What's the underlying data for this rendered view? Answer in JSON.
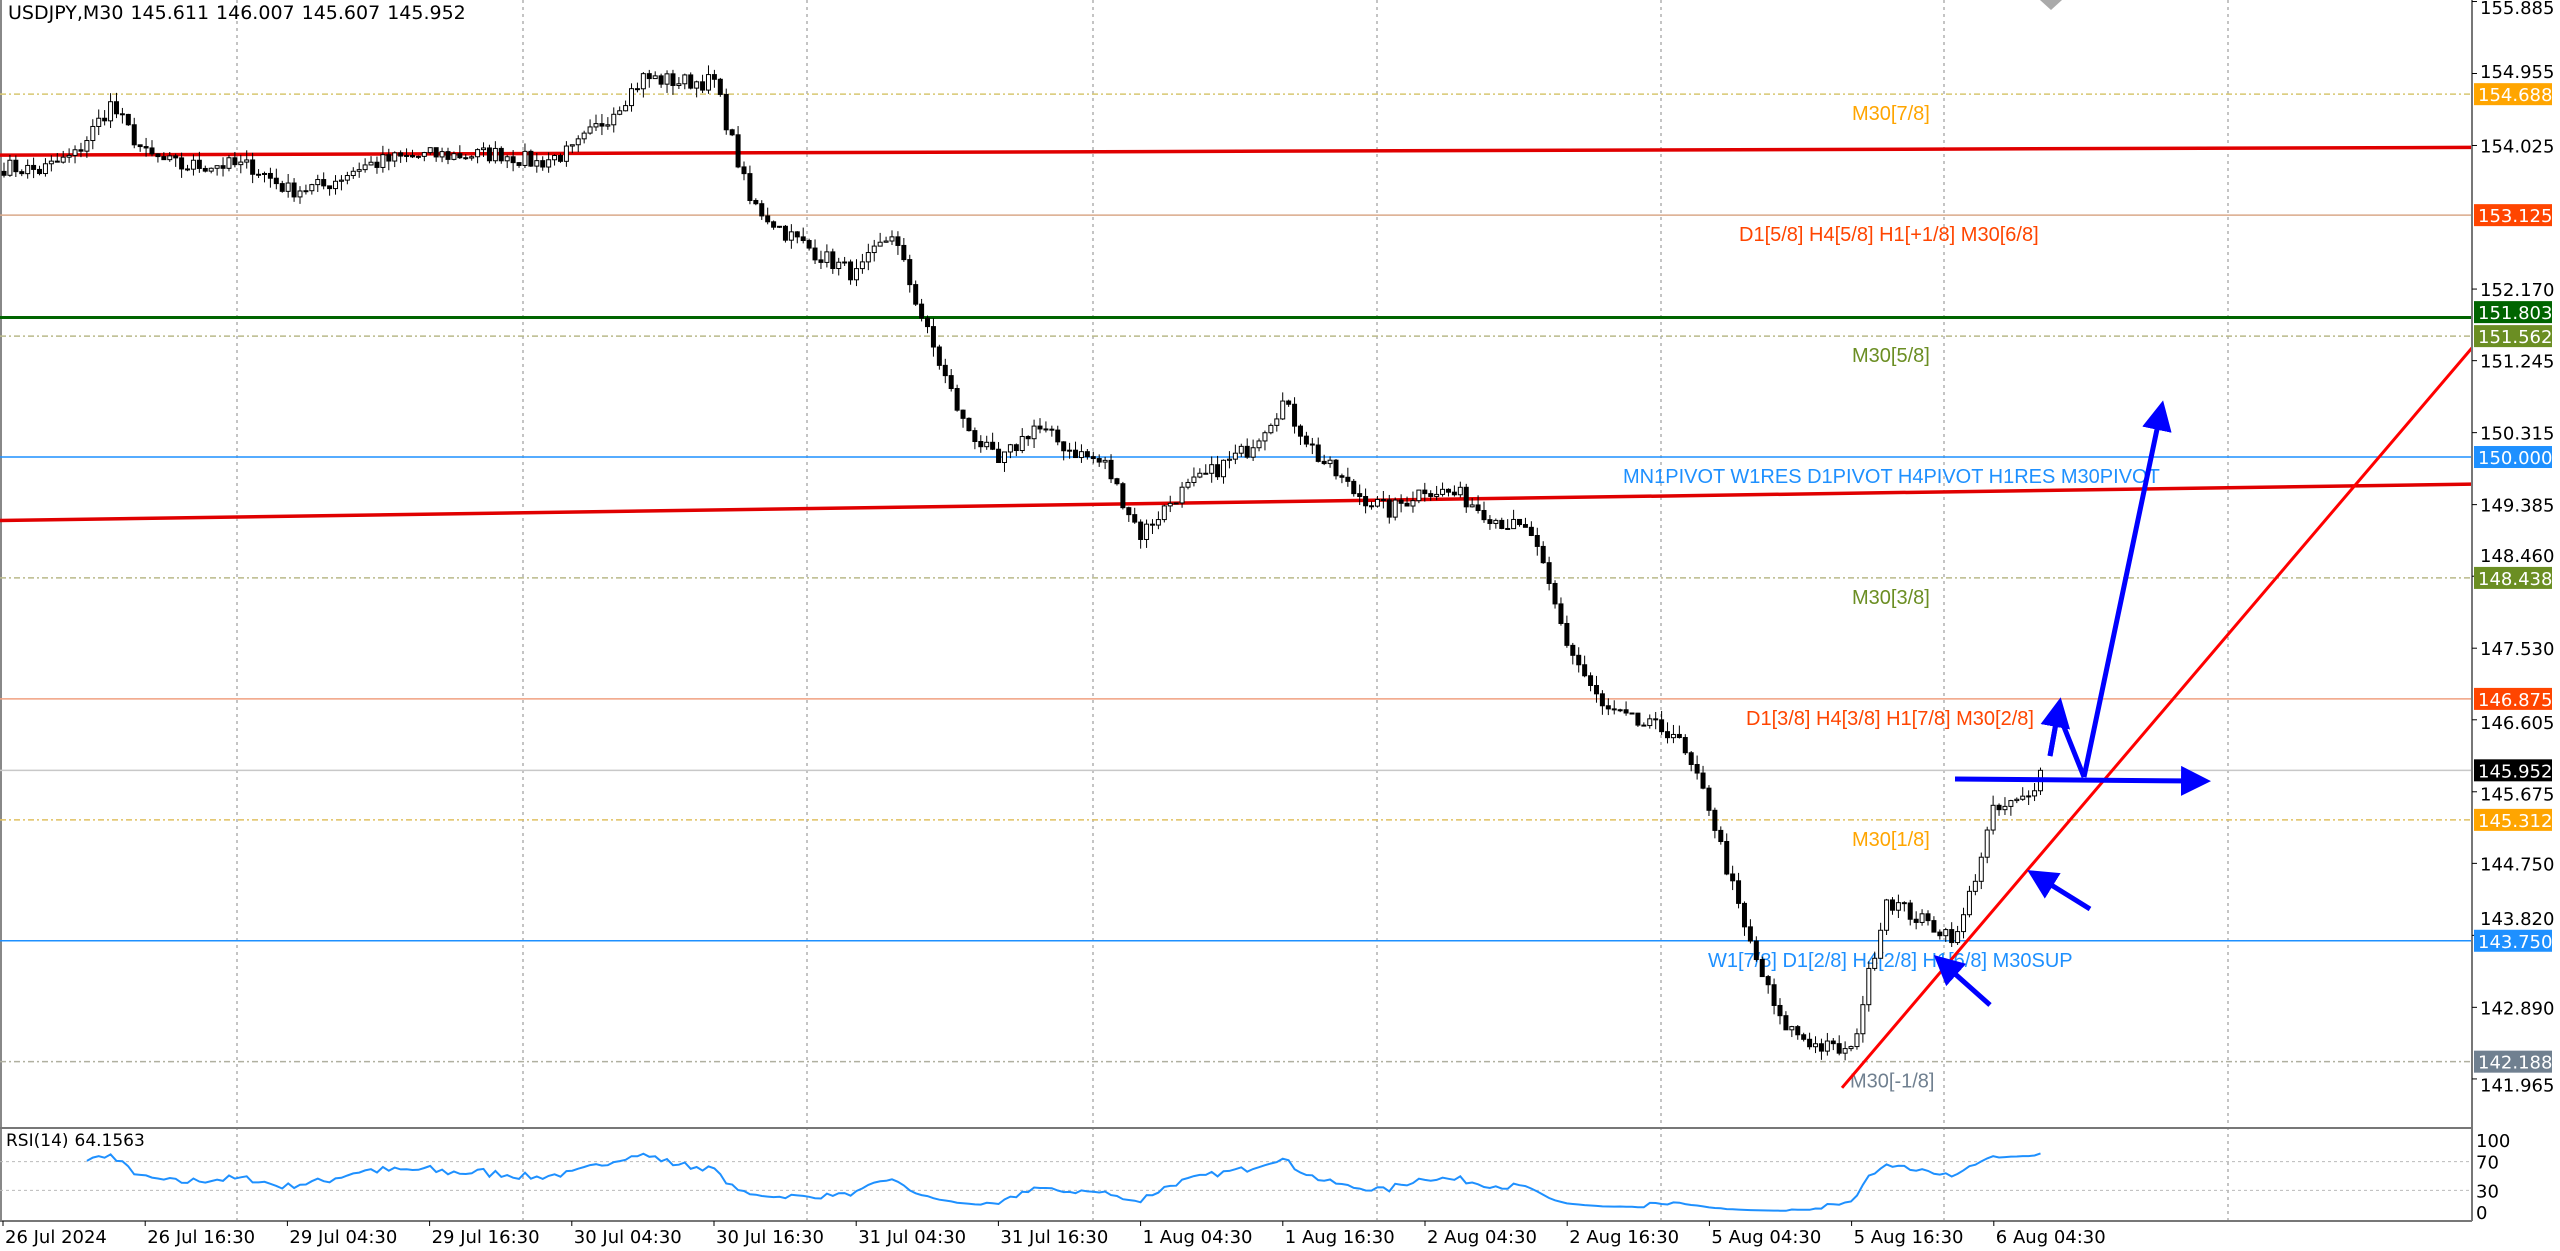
{
  "header": {
    "symbol": "USDJPY,M30",
    "open": "145.611",
    "high": "146.007",
    "low": "145.607",
    "close": "145.952"
  },
  "chart_data": {
    "type": "candlestick",
    "symbol": "USDJPY",
    "timeframe": "M30",
    "ylim": [
      141.4,
      155.9
    ],
    "price_ticks": [
      "155.885",
      "154.955",
      "154.025",
      "152.170",
      "151.245",
      "150.315",
      "149.385",
      "148.460",
      "147.530",
      "146.605",
      "145.675",
      "144.750",
      "143.820",
      "142.890",
      "141.965"
    ],
    "time_ticks": [
      "26 Jul 2024",
      "26 Jul 16:30",
      "29 Jul 04:30",
      "29 Jul 16:30",
      "30 Jul 04:30",
      "30 Jul 16:30",
      "31 Jul 04:30",
      "31 Jul 16:30",
      "1 Aug 04:30",
      "1 Aug 16:30",
      "2 Aug 04:30",
      "2 Aug 16:30",
      "5 Aug 04:30",
      "5 Aug 16:30",
      "6 Aug 04:30"
    ],
    "close_path_every_6_bars": [
      153.75,
      153.7,
      153.9,
      154.55,
      153.9,
      153.75,
      153.78,
      153.75,
      153.45,
      153.5,
      153.75,
      153.85,
      153.9,
      153.9,
      153.92,
      153.8,
      153.95,
      154.4,
      154.9,
      154.85,
      154.85,
      153.3,
      152.9,
      152.6,
      152.35,
      152.9,
      151.6,
      150.45,
      149.9,
      150.4,
      150.1,
      149.9,
      149.0,
      149.5,
      149.8,
      150.1,
      150.7,
      150.0,
      149.55,
      149.3,
      149.6,
      149.5,
      149.2,
      149.0,
      147.6,
      146.75,
      146.55,
      146.45,
      145.5,
      143.9,
      142.7,
      142.4,
      142.3,
      144.3,
      144.0,
      143.8,
      145.4,
      145.6
    ],
    "last_close": 145.952,
    "current_price": {
      "price": 145.952,
      "badge": "145.952",
      "badge_color": "#000000",
      "line_color": "#c8c8c8"
    },
    "levels": [
      {
        "price": 154.688,
        "badge": "154.688",
        "label": "M30[7/8]",
        "color": "#FFA500",
        "line_color": "#d8c870",
        "style": "dashdot"
      },
      {
        "price": 153.125,
        "badge": "153.125",
        "label": "D1[5/8] H4[5/8] H1[+1/8] M30[6/8]",
        "color": "#FF4500",
        "line_color": "#d9a98a",
        "style": "solid"
      },
      {
        "price": 151.803,
        "badge": "151.803",
        "label": "",
        "color": "#006400",
        "line_color": "#006400",
        "style": "thick"
      },
      {
        "price": 151.562,
        "badge": "151.562",
        "label": "M30[5/8]",
        "color": "#6B8E23",
        "line_color": "#b9b98a",
        "style": "dashdot"
      },
      {
        "price": 150.0,
        "badge": "150.000",
        "label": "MN1PIVOT W1RES D1PIVOT H4PIVOT H1RES M30PIVOT",
        "color": "#1E90FF",
        "line_color": "#1E90FF",
        "style": "solid"
      },
      {
        "price": 148.438,
        "badge": "148.438",
        "label": "M30[3/8]",
        "color": "#6B8E23",
        "line_color": "#b9b98a",
        "style": "dashdot"
      },
      {
        "price": 146.875,
        "badge": "146.875",
        "label": "D1[3/8] H4[3/8] H1[7/8] M30[2/8]",
        "color": "#FF4500",
        "line_color": "#f0a080",
        "style": "solid"
      },
      {
        "price": 145.312,
        "badge": "145.312",
        "label": "M30[1/8]",
        "color": "#FFA500",
        "line_color": "#e0c060",
        "style": "dashdot"
      },
      {
        "price": 143.75,
        "badge": "143.750",
        "label": "W1[7/8] D1[2/8] H4[2/8] H1[6/8] M30SUP",
        "color": "#1E90FF",
        "line_color": "#1E90FF",
        "style": "solid"
      },
      {
        "price": 142.188,
        "badge": "142.188",
        "label": "M30[-1/8]",
        "color": "#708090",
        "line_color": "#b0b0a0",
        "style": "dashdot"
      }
    ],
    "trendlines": [
      {
        "color": "#E00000",
        "price_left": 153.9,
        "price_right": 154.0
      },
      {
        "color": "#E00000",
        "price_left": 149.18,
        "price_right": 149.65
      },
      {
        "color": "#FF0000",
        "price_start": 141.85,
        "price_end": 151.41
      }
    ],
    "annotation_color": "#0000FF",
    "rsi": {
      "title": "RSI(14)",
      "value": "64.1563",
      "period": 14,
      "levels": [
        "100",
        "70",
        "30",
        "0"
      ],
      "color": "#1E90FF"
    }
  }
}
